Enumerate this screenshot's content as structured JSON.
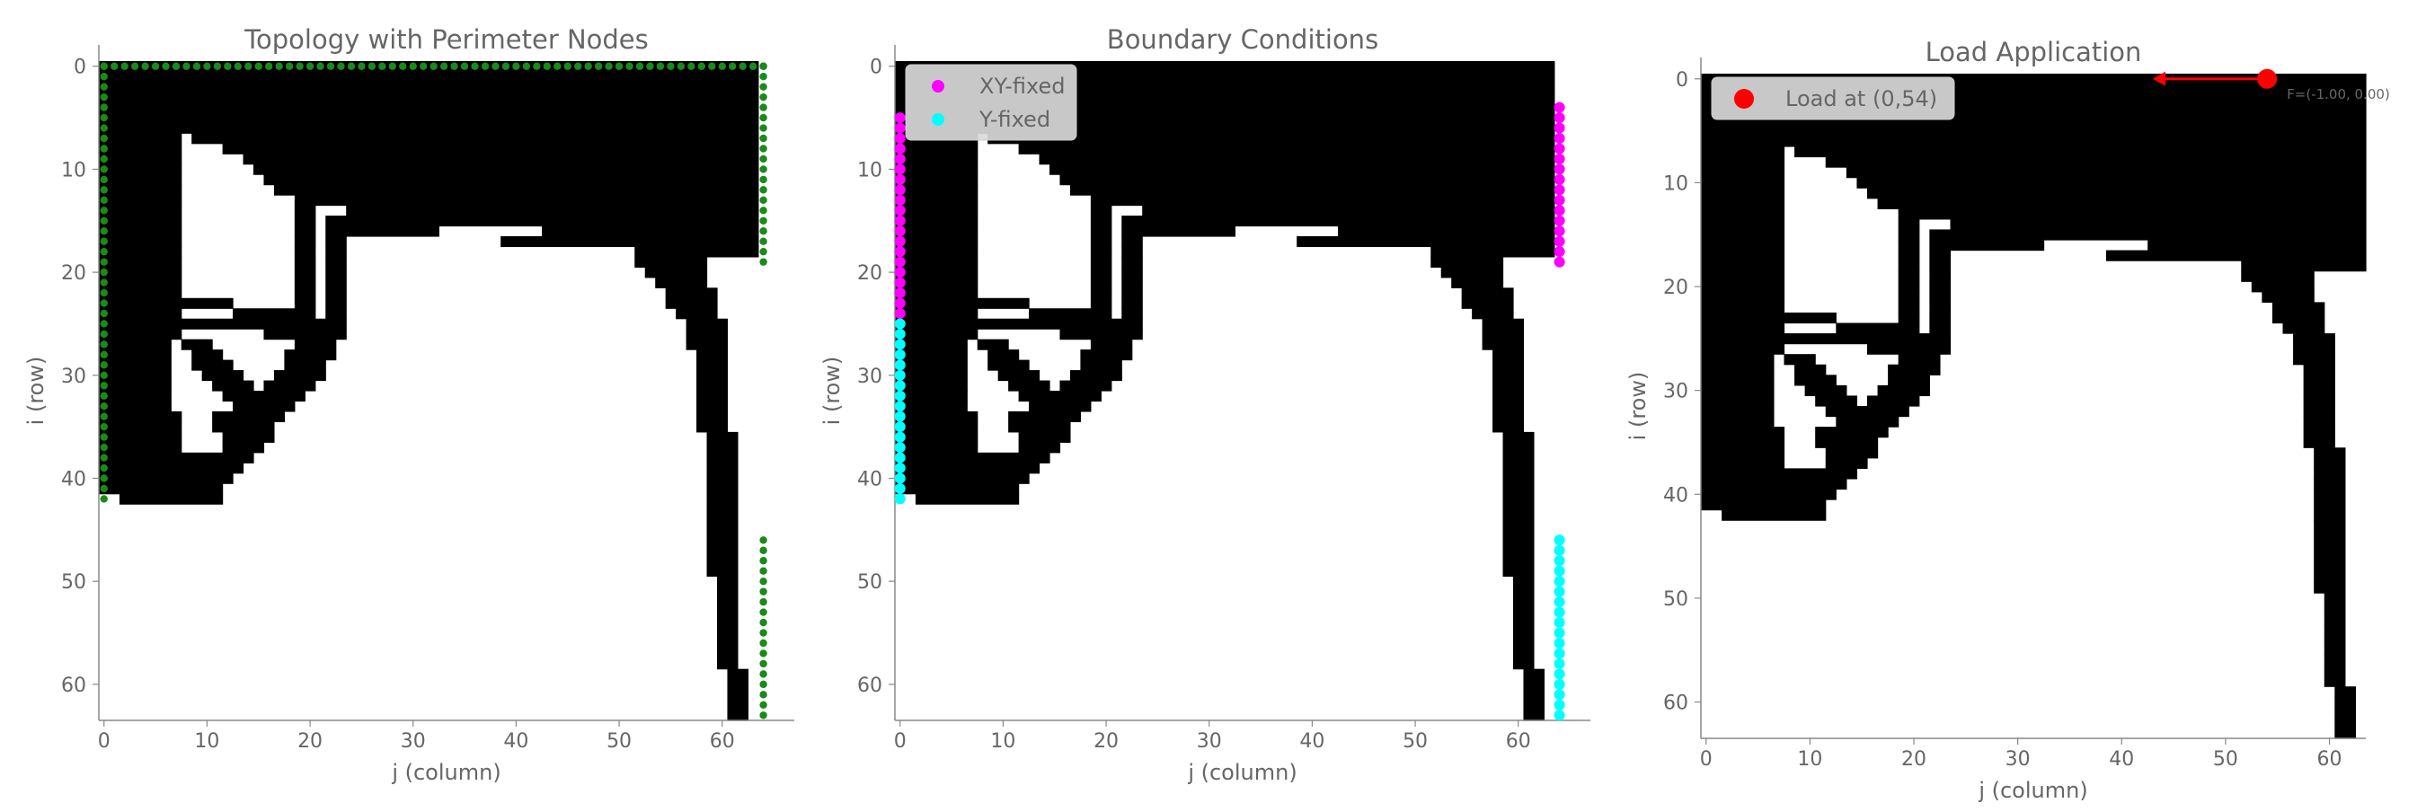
{
  "chart_data": [
    {
      "type": "heatmap",
      "title": "Topology with Perimeter Nodes",
      "xlabel": "j (column)",
      "ylabel": "i (row)",
      "xticks": [
        0,
        10,
        20,
        30,
        40,
        50,
        60
      ],
      "yticks": [
        0,
        10,
        20,
        30,
        40,
        50,
        60
      ],
      "xlim": [
        -0.5,
        67
      ],
      "ylim": [
        63.5,
        -0.5
      ],
      "grid": false,
      "legend": null,
      "colors": {
        "solid": "#000000",
        "void": "#ffffff",
        "nodes": "#1a8a1a"
      },
      "overlays": [
        "perimeter_nodes"
      ]
    },
    {
      "type": "heatmap",
      "title": "Boundary Conditions",
      "xlabel": "j (column)",
      "ylabel": "i (row)",
      "xticks": [
        0,
        10,
        20,
        30,
        40,
        50,
        60
      ],
      "yticks": [
        0,
        10,
        20,
        30,
        40,
        50,
        60
      ],
      "xlim": [
        -0.5,
        67
      ],
      "ylim": [
        63.5,
        -0.5
      ],
      "grid": false,
      "legend": {
        "position": "top-left",
        "entries": [
          {
            "label": "XY-fixed",
            "color": "#ff00ff"
          },
          {
            "label": "Y-fixed",
            "color": "#00ffff"
          }
        ]
      },
      "overlays": [
        "xy_fixed",
        "y_fixed"
      ]
    },
    {
      "type": "heatmap",
      "title": "Load Application",
      "xlabel": "j (column)",
      "ylabel": "i (row)",
      "xticks": [
        0,
        10,
        20,
        30,
        40,
        50,
        60
      ],
      "yticks": [
        0,
        10,
        20,
        30,
        40,
        50,
        60
      ],
      "xlim": [
        -0.5,
        63.5
      ],
      "ylim": [
        63.5,
        -0.5
      ],
      "grid": false,
      "legend": {
        "position": "top-left",
        "entries": [
          {
            "label": "Load at (0,54)",
            "color": "#ff0000"
          }
        ]
      },
      "load": {
        "i": 0,
        "j": 54,
        "fx": -1.0,
        "fy": 0.0,
        "label": "F=(-1.00, 0.00)",
        "arrow_to_j": 43,
        "color": "#ff0000"
      },
      "overlays": [
        "load"
      ]
    }
  ],
  "topology": {
    "rows": 64,
    "cols": 64,
    "solid_row_ranges": [
      [
        [
          0,
          63
        ]
      ],
      [
        [
          0,
          63
        ]
      ],
      [
        [
          0,
          63
        ]
      ],
      [
        [
          0,
          63
        ]
      ],
      [
        [
          0,
          63
        ]
      ],
      [
        [
          0,
          63
        ]
      ],
      [
        [
          0,
          63
        ]
      ],
      [
        [
          0,
          7
        ],
        [
          9,
          63
        ]
      ],
      [
        [
          0,
          7
        ],
        [
          12,
          63
        ]
      ],
      [
        [
          0,
          7
        ],
        [
          14,
          63
        ]
      ],
      [
        [
          0,
          7
        ],
        [
          15,
          63
        ]
      ],
      [
        [
          0,
          7
        ],
        [
          16,
          63
        ]
      ],
      [
        [
          0,
          7
        ],
        [
          17,
          63
        ]
      ],
      [
        [
          0,
          7
        ],
        [
          19,
          63
        ]
      ],
      [
        [
          0,
          7
        ],
        [
          19,
          20
        ],
        [
          24,
          63
        ]
      ],
      [
        [
          0,
          7
        ],
        [
          19,
          20
        ],
        [
          22,
          63
        ]
      ],
      [
        [
          0,
          7
        ],
        [
          19,
          20
        ],
        [
          22,
          32
        ],
        [
          43,
          63
        ]
      ],
      [
        [
          0,
          7
        ],
        [
          19,
          20
        ],
        [
          22,
          21
        ],
        [
          22,
          23
        ],
        [
          39,
          63
        ]
      ],
      [
        [
          0,
          7
        ],
        [
          19,
          20
        ],
        [
          22,
          23
        ],
        [
          52,
          63
        ]
      ],
      [
        [
          0,
          7
        ],
        [
          19,
          20
        ],
        [
          22,
          23
        ],
        [
          52,
          58
        ]
      ],
      [
        [
          0,
          7
        ],
        [
          19,
          20
        ],
        [
          22,
          23
        ],
        [
          53,
          58
        ]
      ],
      [
        [
          0,
          7
        ],
        [
          19,
          20
        ],
        [
          22,
          23
        ],
        [
          54,
          58
        ]
      ],
      [
        [
          0,
          7
        ],
        [
          19,
          20
        ],
        [
          22,
          23
        ],
        [
          55,
          59
        ]
      ],
      [
        [
          0,
          12
        ],
        [
          19,
          20
        ],
        [
          22,
          23
        ],
        [
          55,
          59
        ]
      ],
      [
        [
          0,
          7
        ],
        [
          13,
          20
        ],
        [
          22,
          23
        ],
        [
          56,
          59
        ]
      ],
      [
        [
          0,
          7
        ],
        [
          8,
          21
        ],
        [
          22,
          23
        ],
        [
          57,
          60
        ]
      ],
      [
        [
          0,
          7
        ],
        [
          16,
          21
        ],
        [
          22,
          23
        ],
        [
          57,
          60
        ]
      ],
      [
        [
          0,
          6
        ],
        [
          8,
          10
        ],
        [
          19,
          22
        ],
        [
          57,
          60
        ]
      ],
      [
        [
          0,
          6
        ],
        [
          9,
          11
        ],
        [
          18,
          22
        ],
        [
          58,
          60
        ]
      ],
      [
        [
          0,
          6
        ],
        [
          9,
          12
        ],
        [
          18,
          21
        ],
        [
          58,
          60
        ]
      ],
      [
        [
          0,
          6
        ],
        [
          10,
          13
        ],
        [
          17,
          21
        ],
        [
          58,
          60
        ]
      ],
      [
        [
          0,
          6
        ],
        [
          11,
          14
        ],
        [
          16,
          20
        ],
        [
          58,
          60
        ]
      ],
      [
        [
          0,
          6
        ],
        [
          12,
          19
        ],
        [
          58,
          60
        ]
      ],
      [
        [
          0,
          6
        ],
        [
          13,
          18
        ],
        [
          58,
          60
        ]
      ],
      [
        [
          0,
          7
        ],
        [
          11,
          17
        ],
        [
          58,
          60
        ]
      ],
      [
        [
          0,
          7
        ],
        [
          11,
          16
        ],
        [
          58,
          60
        ]
      ],
      [
        [
          0,
          7
        ],
        [
          12,
          16
        ],
        [
          59,
          61
        ]
      ],
      [
        [
          0,
          7
        ],
        [
          12,
          15
        ],
        [
          59,
          61
        ]
      ],
      [
        [
          0,
          14
        ],
        [
          59,
          61
        ]
      ],
      [
        [
          0,
          13
        ],
        [
          59,
          61
        ]
      ],
      [
        [
          0,
          12
        ],
        [
          59,
          61
        ]
      ],
      [
        [
          0,
          11
        ],
        [
          59,
          61
        ]
      ],
      [
        [
          2,
          11
        ],
        [
          59,
          61
        ]
      ],
      [
        [
          59,
          61
        ]
      ],
      [
        [
          59,
          61
        ]
      ],
      [
        [
          59,
          61
        ]
      ],
      [
        [
          59,
          61
        ]
      ],
      [
        [
          59,
          61
        ]
      ],
      [
        [
          59,
          61
        ]
      ],
      [
        [
          59,
          61
        ]
      ],
      [
        [
          60,
          61
        ]
      ],
      [
        [
          60,
          61
        ]
      ],
      [
        [
          60,
          61
        ]
      ],
      [
        [
          60,
          61
        ]
      ],
      [
        [
          60,
          61
        ]
      ],
      [
        [
          60,
          61
        ]
      ],
      [
        [
          60,
          61
        ]
      ],
      [
        [
          60,
          61
        ]
      ],
      [
        [
          60,
          61
        ]
      ],
      [
        [
          61,
          62
        ]
      ],
      [
        [
          61,
          62
        ]
      ],
      [
        [
          61,
          62
        ]
      ],
      [
        [
          61,
          62
        ]
      ],
      [
        [
          61,
          62
        ]
      ]
    ]
  },
  "overlays": {
    "perimeter_nodes": {
      "top_row": {
        "i": 0,
        "j_from": 0,
        "j_to": 64
      },
      "left_col": {
        "j": 0,
        "i_from": 0,
        "i_to": 42
      },
      "right_col_upper": {
        "j": 64,
        "i_from": 0,
        "i_to": 19
      },
      "right_col_lower": {
        "j": 64,
        "i_from": 46,
        "i_to": 63
      }
    },
    "xy_fixed": [
      {
        "j": 0,
        "i_from": 5,
        "i_to": 24
      },
      {
        "j": 64,
        "i_from": 4,
        "i_to": 19
      }
    ],
    "y_fixed": [
      {
        "j": 0,
        "i_from": 25,
        "i_to": 42
      },
      {
        "j": 64,
        "i_from": 46,
        "i_to": 63
      }
    ]
  }
}
